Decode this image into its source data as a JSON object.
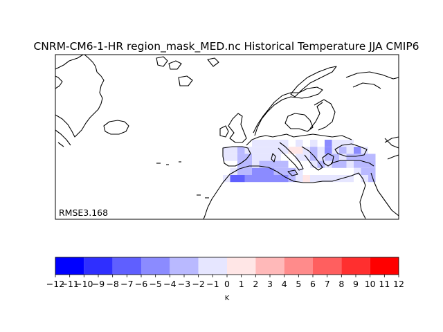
{
  "title": "CNRM-CM6-1-HR region_mask_MED.nc Historical Temperature JJA CMIP6",
  "annotation": "RMSE3.168",
  "colorbar": {
    "unit": "K",
    "ticks": [
      "-12",
      "-11",
      "-10",
      "-9",
      "-8",
      "-7",
      "-6",
      "-5",
      "-4",
      "-3",
      "-2",
      "-1",
      "0",
      "1",
      "2",
      "3",
      "4",
      "5",
      "6",
      "7",
      "8",
      "9",
      "10",
      "11",
      "12"
    ],
    "bins": [
      {
        "from": -12,
        "to": -10,
        "color": "#0000ff"
      },
      {
        "from": -10,
        "to": -8,
        "color": "#2f2fff"
      },
      {
        "from": -8,
        "to": -6,
        "color": "#5f5fff"
      },
      {
        "from": -6,
        "to": -4,
        "color": "#8b8bff"
      },
      {
        "from": -4,
        "to": -2,
        "color": "#b9b9ff"
      },
      {
        "from": -2,
        "to": 0,
        "color": "#e6e6ff"
      },
      {
        "from": 0,
        "to": 2,
        "color": "#ffe6e6"
      },
      {
        "from": 2,
        "to": 4,
        "color": "#ffb9b9"
      },
      {
        "from": 4,
        "to": 6,
        "color": "#ff8b8b"
      },
      {
        "from": 6,
        "to": 8,
        "color": "#ff5f5f"
      },
      {
        "from": 8,
        "to": 10,
        "color": "#ff2f2f"
      },
      {
        "from": 10,
        "to": 12,
        "color": "#ff0000"
      }
    ]
  }
}
